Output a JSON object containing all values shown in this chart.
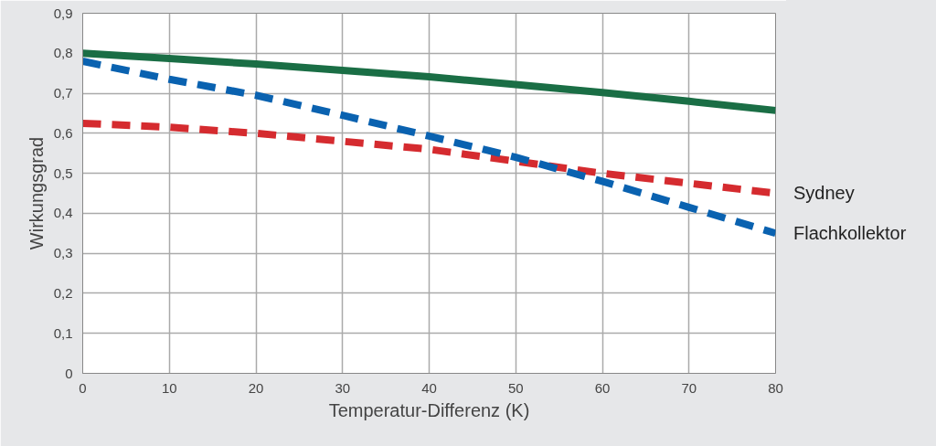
{
  "chart_data": {
    "type": "line",
    "xlabel": "Temperatur-Differenz (K)",
    "ylabel": "Wirkungsgrad",
    "x": [
      0,
      10,
      20,
      30,
      40,
      50,
      60,
      70,
      80
    ],
    "series": [
      {
        "color": "#1a6e45",
        "line_style": "solid",
        "values": [
          0.8,
          0.787,
          0.773,
          0.757,
          0.741,
          0.722,
          0.702,
          0.68,
          0.657
        ]
      },
      {
        "name": "Sydney",
        "color": "#d52b2f",
        "line_style": "dashed",
        "values": [
          0.625,
          0.615,
          0.6,
          0.58,
          0.56,
          0.53,
          0.5,
          0.475,
          0.45
        ]
      },
      {
        "name": "Flachkollektor",
        "color": "#0a62b0",
        "line_style": "dashed",
        "values": [
          0.78,
          0.735,
          0.695,
          0.645,
          0.593,
          0.54,
          0.48,
          0.415,
          0.35
        ]
      }
    ],
    "xlim": [
      0,
      80
    ],
    "xticks": [
      0,
      10,
      20,
      30,
      40,
      50,
      60,
      70,
      80
    ],
    "ylim": [
      0,
      0.9
    ],
    "yticks": [
      0,
      {
        "value": 0.1,
        "label": "0,1"
      },
      {
        "value": 0.2,
        "label": "0,2"
      },
      {
        "value": 0.3,
        "label": "0,3"
      },
      {
        "value": 0.4,
        "label": "0,4"
      },
      {
        "value": 0.5,
        "label": "0,5"
      },
      {
        "value": 0.6,
        "label": "0,6"
      },
      {
        "value": 0.7,
        "label": "0,7"
      },
      {
        "value": 0.8,
        "label": "0,8"
      },
      {
        "value": 0.9,
        "label": "0,9"
      }
    ],
    "grid": true,
    "legend": false
  }
}
